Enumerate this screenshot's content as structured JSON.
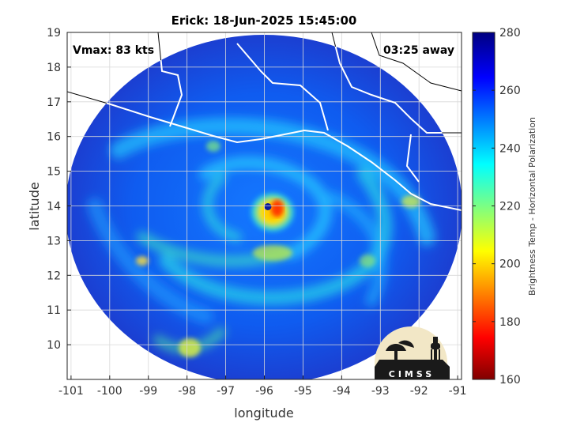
{
  "chart_data": {
    "type": "heatmap",
    "title": "Erick: 18-Jun-2025 15:45:00",
    "xlabel": "longitude",
    "ylabel": "latitude",
    "xlim": [
      -101.1,
      -90.9
    ],
    "ylim": [
      9,
      19
    ],
    "xticks": [
      -101,
      -100,
      -99,
      -98,
      -97,
      -96,
      -95,
      -94,
      -93,
      -92,
      -91
    ],
    "yticks": [
      10,
      11,
      12,
      13,
      14,
      15,
      16,
      17,
      18,
      19
    ],
    "grid": true,
    "annotations": {
      "vmax": "Vmax: 83 kts",
      "time_offset": "03:25 away"
    },
    "storm_center": {
      "lon": -95.95,
      "lat": 14.0
    },
    "colorbar": {
      "label": "Brightness Temp - Horizontal Polarization",
      "range": [
        160,
        280
      ],
      "ticks": [
        160,
        180,
        200,
        220,
        240,
        260,
        280
      ],
      "colormap": "jet"
    },
    "logo_text": "CIMSS"
  }
}
